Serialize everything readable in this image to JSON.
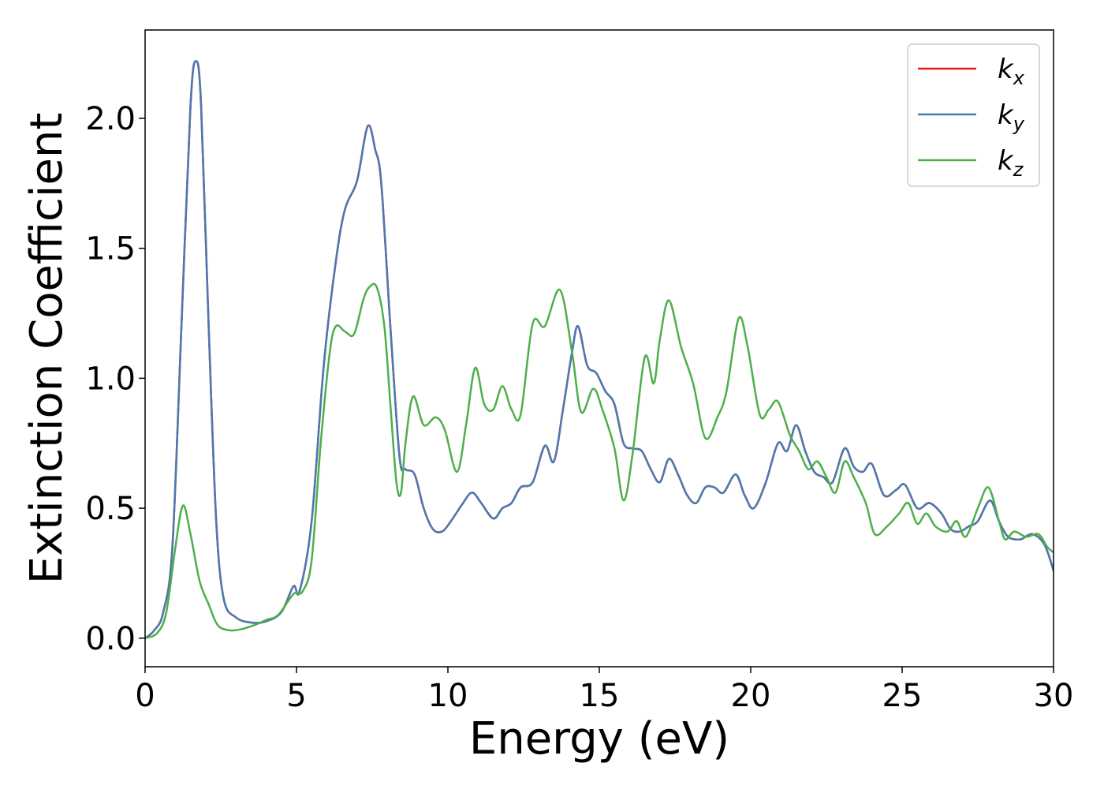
{
  "chart_data": {
    "type": "line",
    "title": "",
    "xlabel": "Energy (eV)",
    "ylabel": "Extinction Coefficient",
    "xlim": [
      0,
      30
    ],
    "ylim": [
      -0.11,
      2.34
    ],
    "xticks": [
      0,
      5,
      10,
      15,
      20,
      25,
      30
    ],
    "yticks": [
      0.0,
      0.5,
      1.0,
      1.5,
      2.0
    ],
    "xtick_labels": [
      "0",
      "5",
      "10",
      "15",
      "20",
      "25",
      "30"
    ],
    "ytick_labels": [
      "0.0",
      "0.5",
      "1.0",
      "1.5",
      "2.0"
    ],
    "grid": false,
    "legend_position": "top-right",
    "legend": [
      {
        "base": "k",
        "sub": "x",
        "color": "#e41a1c"
      },
      {
        "base": "k",
        "sub": "y",
        "color": "#4a7ab0"
      },
      {
        "base": "k",
        "sub": "z",
        "color": "#4daf4a"
      }
    ],
    "series": [
      {
        "name": "k_x",
        "color": "#e41a1c",
        "points": [
          [
            0,
            0
          ],
          [
            0.3,
            0.03
          ],
          [
            0.6,
            0.1
          ],
          [
            0.9,
            0.35
          ],
          [
            1.2,
            1.2
          ],
          [
            1.5,
            2.05
          ],
          [
            1.68,
            2.22
          ],
          [
            1.85,
            2.05
          ],
          [
            2.1,
            1.2
          ],
          [
            2.35,
            0.45
          ],
          [
            2.6,
            0.15
          ],
          [
            3.0,
            0.08
          ],
          [
            3.5,
            0.06
          ],
          [
            4.0,
            0.065
          ],
          [
            4.5,
            0.1
          ],
          [
            4.9,
            0.2
          ],
          [
            5.1,
            0.18
          ],
          [
            5.5,
            0.45
          ],
          [
            5.9,
            1.05
          ],
          [
            6.3,
            1.45
          ],
          [
            6.6,
            1.65
          ],
          [
            7.0,
            1.76
          ],
          [
            7.35,
            1.97
          ],
          [
            7.6,
            1.88
          ],
          [
            7.8,
            1.75
          ],
          [
            8.1,
            1.2
          ],
          [
            8.4,
            0.7
          ],
          [
            8.6,
            0.65
          ],
          [
            8.9,
            0.63
          ],
          [
            9.2,
            0.5
          ],
          [
            9.5,
            0.42
          ],
          [
            9.8,
            0.41
          ],
          [
            10.1,
            0.45
          ],
          [
            10.5,
            0.52
          ],
          [
            10.8,
            0.56
          ],
          [
            11.1,
            0.52
          ],
          [
            11.5,
            0.46
          ],
          [
            11.8,
            0.5
          ],
          [
            12.1,
            0.52
          ],
          [
            12.4,
            0.58
          ],
          [
            12.8,
            0.6
          ],
          [
            13.2,
            0.74
          ],
          [
            13.5,
            0.68
          ],
          [
            13.8,
            0.88
          ],
          [
            14.1,
            1.1
          ],
          [
            14.3,
            1.2
          ],
          [
            14.6,
            1.05
          ],
          [
            14.9,
            1.02
          ],
          [
            15.2,
            0.95
          ],
          [
            15.5,
            0.9
          ],
          [
            15.8,
            0.75
          ],
          [
            16.1,
            0.73
          ],
          [
            16.4,
            0.72
          ],
          [
            16.7,
            0.65
          ],
          [
            17.0,
            0.6
          ],
          [
            17.3,
            0.69
          ],
          [
            17.6,
            0.63
          ],
          [
            17.9,
            0.55
          ],
          [
            18.2,
            0.52
          ],
          [
            18.5,
            0.58
          ],
          [
            18.8,
            0.58
          ],
          [
            19.1,
            0.56
          ],
          [
            19.5,
            0.63
          ],
          [
            19.8,
            0.55
          ],
          [
            20.1,
            0.5
          ],
          [
            20.5,
            0.6
          ],
          [
            20.9,
            0.75
          ],
          [
            21.2,
            0.72
          ],
          [
            21.5,
            0.82
          ],
          [
            21.8,
            0.72
          ],
          [
            22.1,
            0.64
          ],
          [
            22.4,
            0.62
          ],
          [
            22.7,
            0.6
          ],
          [
            23.1,
            0.73
          ],
          [
            23.4,
            0.66
          ],
          [
            23.7,
            0.64
          ],
          [
            24.0,
            0.67
          ],
          [
            24.4,
            0.55
          ],
          [
            24.8,
            0.57
          ],
          [
            25.1,
            0.59
          ],
          [
            25.5,
            0.5
          ],
          [
            25.9,
            0.52
          ],
          [
            26.3,
            0.48
          ],
          [
            26.6,
            0.42
          ],
          [
            26.9,
            0.41
          ],
          [
            27.2,
            0.43
          ],
          [
            27.5,
            0.45
          ],
          [
            27.9,
            0.53
          ],
          [
            28.2,
            0.45
          ],
          [
            28.5,
            0.39
          ],
          [
            28.9,
            0.38
          ],
          [
            29.3,
            0.4
          ],
          [
            29.7,
            0.36
          ],
          [
            30.0,
            0.26
          ]
        ]
      },
      {
        "name": "k_y",
        "color": "#4a7ab0",
        "points": [
          [
            0,
            0
          ],
          [
            0.3,
            0.03
          ],
          [
            0.6,
            0.1
          ],
          [
            0.9,
            0.35
          ],
          [
            1.2,
            1.2
          ],
          [
            1.5,
            2.05
          ],
          [
            1.68,
            2.22
          ],
          [
            1.85,
            2.05
          ],
          [
            2.1,
            1.2
          ],
          [
            2.35,
            0.45
          ],
          [
            2.6,
            0.15
          ],
          [
            3.0,
            0.08
          ],
          [
            3.5,
            0.06
          ],
          [
            4.0,
            0.065
          ],
          [
            4.5,
            0.1
          ],
          [
            4.9,
            0.2
          ],
          [
            5.1,
            0.18
          ],
          [
            5.5,
            0.45
          ],
          [
            5.9,
            1.05
          ],
          [
            6.3,
            1.45
          ],
          [
            6.6,
            1.65
          ],
          [
            7.0,
            1.76
          ],
          [
            7.35,
            1.97
          ],
          [
            7.6,
            1.88
          ],
          [
            7.8,
            1.75
          ],
          [
            8.1,
            1.2
          ],
          [
            8.4,
            0.7
          ],
          [
            8.6,
            0.65
          ],
          [
            8.9,
            0.63
          ],
          [
            9.2,
            0.5
          ],
          [
            9.5,
            0.42
          ],
          [
            9.8,
            0.41
          ],
          [
            10.1,
            0.45
          ],
          [
            10.5,
            0.52
          ],
          [
            10.8,
            0.56
          ],
          [
            11.1,
            0.52
          ],
          [
            11.5,
            0.46
          ],
          [
            11.8,
            0.5
          ],
          [
            12.1,
            0.52
          ],
          [
            12.4,
            0.58
          ],
          [
            12.8,
            0.6
          ],
          [
            13.2,
            0.74
          ],
          [
            13.5,
            0.68
          ],
          [
            13.8,
            0.88
          ],
          [
            14.1,
            1.1
          ],
          [
            14.3,
            1.2
          ],
          [
            14.6,
            1.05
          ],
          [
            14.9,
            1.02
          ],
          [
            15.2,
            0.95
          ],
          [
            15.5,
            0.9
          ],
          [
            15.8,
            0.75
          ],
          [
            16.1,
            0.73
          ],
          [
            16.4,
            0.72
          ],
          [
            16.7,
            0.65
          ],
          [
            17.0,
            0.6
          ],
          [
            17.3,
            0.69
          ],
          [
            17.6,
            0.63
          ],
          [
            17.9,
            0.55
          ],
          [
            18.2,
            0.52
          ],
          [
            18.5,
            0.58
          ],
          [
            18.8,
            0.58
          ],
          [
            19.1,
            0.56
          ],
          [
            19.5,
            0.63
          ],
          [
            19.8,
            0.55
          ],
          [
            20.1,
            0.5
          ],
          [
            20.5,
            0.6
          ],
          [
            20.9,
            0.75
          ],
          [
            21.2,
            0.72
          ],
          [
            21.5,
            0.82
          ],
          [
            21.8,
            0.72
          ],
          [
            22.1,
            0.64
          ],
          [
            22.4,
            0.62
          ],
          [
            22.7,
            0.6
          ],
          [
            23.1,
            0.73
          ],
          [
            23.4,
            0.66
          ],
          [
            23.7,
            0.64
          ],
          [
            24.0,
            0.67
          ],
          [
            24.4,
            0.55
          ],
          [
            24.8,
            0.57
          ],
          [
            25.1,
            0.59
          ],
          [
            25.5,
            0.5
          ],
          [
            25.9,
            0.52
          ],
          [
            26.3,
            0.48
          ],
          [
            26.6,
            0.42
          ],
          [
            26.9,
            0.41
          ],
          [
            27.2,
            0.43
          ],
          [
            27.5,
            0.45
          ],
          [
            27.9,
            0.53
          ],
          [
            28.2,
            0.45
          ],
          [
            28.5,
            0.39
          ],
          [
            28.9,
            0.38
          ],
          [
            29.3,
            0.4
          ],
          [
            29.7,
            0.36
          ],
          [
            30.0,
            0.26
          ]
        ]
      },
      {
        "name": "k_z",
        "color": "#4daf4a",
        "points": [
          [
            0,
            0
          ],
          [
            0.4,
            0.02
          ],
          [
            0.7,
            0.1
          ],
          [
            1.0,
            0.35
          ],
          [
            1.25,
            0.51
          ],
          [
            1.5,
            0.4
          ],
          [
            1.8,
            0.22
          ],
          [
            2.1,
            0.13
          ],
          [
            2.4,
            0.05
          ],
          [
            2.8,
            0.03
          ],
          [
            3.2,
            0.035
          ],
          [
            3.6,
            0.05
          ],
          [
            4.0,
            0.07
          ],
          [
            4.4,
            0.09
          ],
          [
            4.9,
            0.17
          ],
          [
            5.2,
            0.18
          ],
          [
            5.5,
            0.3
          ],
          [
            5.8,
            0.75
          ],
          [
            6.1,
            1.1
          ],
          [
            6.3,
            1.2
          ],
          [
            6.6,
            1.18
          ],
          [
            6.9,
            1.17
          ],
          [
            7.2,
            1.3
          ],
          [
            7.4,
            1.35
          ],
          [
            7.65,
            1.35
          ],
          [
            7.9,
            1.2
          ],
          [
            8.1,
            0.9
          ],
          [
            8.3,
            0.6
          ],
          [
            8.45,
            0.56
          ],
          [
            8.6,
            0.75
          ],
          [
            8.85,
            0.93
          ],
          [
            9.2,
            0.82
          ],
          [
            9.6,
            0.85
          ],
          [
            9.9,
            0.8
          ],
          [
            10.3,
            0.64
          ],
          [
            10.6,
            0.82
          ],
          [
            10.9,
            1.04
          ],
          [
            11.2,
            0.9
          ],
          [
            11.5,
            0.88
          ],
          [
            11.8,
            0.97
          ],
          [
            12.1,
            0.88
          ],
          [
            12.4,
            0.86
          ],
          [
            12.8,
            1.21
          ],
          [
            13.2,
            1.2
          ],
          [
            13.7,
            1.34
          ],
          [
            14.1,
            1.1
          ],
          [
            14.4,
            0.87
          ],
          [
            14.8,
            0.96
          ],
          [
            15.1,
            0.88
          ],
          [
            15.5,
            0.73
          ],
          [
            15.8,
            0.53
          ],
          [
            16.1,
            0.71
          ],
          [
            16.5,
            1.08
          ],
          [
            16.8,
            0.98
          ],
          [
            17.0,
            1.15
          ],
          [
            17.3,
            1.3
          ],
          [
            17.7,
            1.12
          ],
          [
            18.1,
            0.98
          ],
          [
            18.5,
            0.77
          ],
          [
            18.9,
            0.85
          ],
          [
            19.2,
            0.95
          ],
          [
            19.6,
            1.23
          ],
          [
            19.9,
            1.12
          ],
          [
            20.3,
            0.86
          ],
          [
            20.6,
            0.88
          ],
          [
            20.9,
            0.91
          ],
          [
            21.3,
            0.78
          ],
          [
            21.6,
            0.72
          ],
          [
            21.9,
            0.65
          ],
          [
            22.2,
            0.68
          ],
          [
            22.5,
            0.62
          ],
          [
            22.8,
            0.56
          ],
          [
            23.1,
            0.68
          ],
          [
            23.4,
            0.62
          ],
          [
            23.8,
            0.52
          ],
          [
            24.1,
            0.4
          ],
          [
            24.5,
            0.43
          ],
          [
            24.9,
            0.48
          ],
          [
            25.2,
            0.52
          ],
          [
            25.5,
            0.44
          ],
          [
            25.8,
            0.48
          ],
          [
            26.1,
            0.43
          ],
          [
            26.5,
            0.41
          ],
          [
            26.8,
            0.45
          ],
          [
            27.1,
            0.39
          ],
          [
            27.5,
            0.5
          ],
          [
            27.85,
            0.58
          ],
          [
            28.2,
            0.45
          ],
          [
            28.4,
            0.38
          ],
          [
            28.7,
            0.41
          ],
          [
            29.1,
            0.39
          ],
          [
            29.5,
            0.4
          ],
          [
            29.8,
            0.35
          ],
          [
            30.0,
            0.33
          ]
        ]
      }
    ]
  }
}
